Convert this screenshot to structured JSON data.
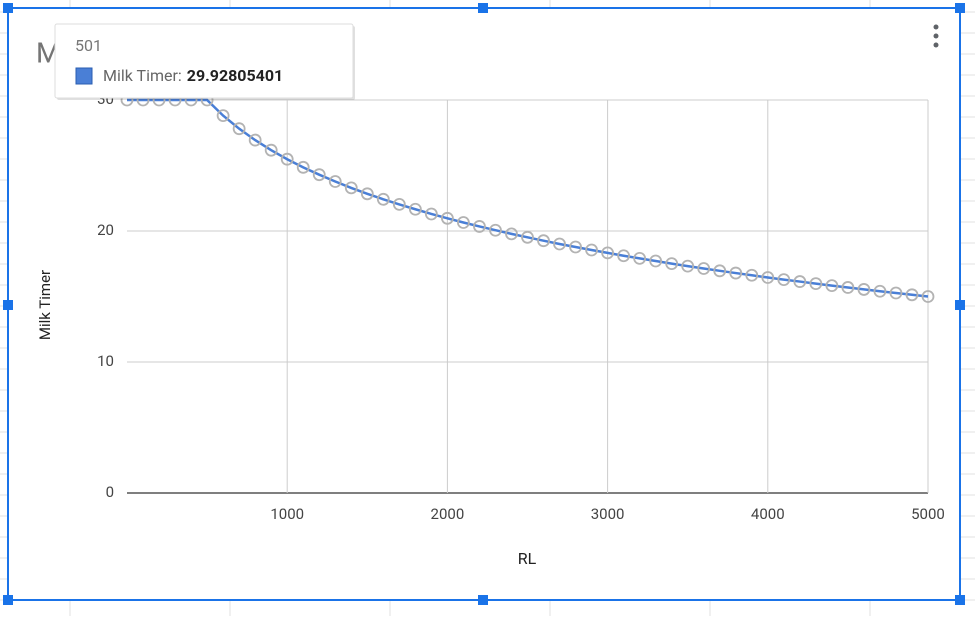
{
  "chart_data": {
    "type": "line",
    "title": "M",
    "x_label": "RL",
    "y_label": "Milk Timer",
    "x": [
      0,
      100,
      200,
      300,
      400,
      500,
      600,
      700,
      800,
      900,
      1000,
      1100,
      1200,
      1300,
      1400,
      1500,
      1600,
      1700,
      1800,
      1900,
      2000,
      2100,
      2200,
      2300,
      2400,
      2500,
      2600,
      2700,
      2800,
      2900,
      3000,
      3100,
      3200,
      3300,
      3400,
      3500,
      3600,
      3700,
      3800,
      3900,
      4000,
      4100,
      4200,
      4300,
      4400,
      4500,
      4600,
      4700,
      4800,
      4900,
      5000
    ],
    "series": [
      {
        "name": "Milk Timer",
        "color": "#4a7fd6",
        "marker_color": "#b3b3b3",
        "values": [
          30,
          30,
          30,
          30,
          30,
          30,
          28.81,
          27.81,
          26.94,
          26.17,
          25.48,
          24.86,
          24.3,
          23.78,
          23.29,
          22.84,
          22.42,
          22.03,
          21.66,
          21.3,
          20.97,
          20.65,
          20.35,
          20.06,
          19.78,
          19.52,
          19.26,
          19.01,
          18.78,
          18.55,
          18.33,
          18.11,
          17.91,
          17.71,
          17.51,
          17.32,
          17.14,
          16.96,
          16.79,
          16.62,
          16.45,
          16.29,
          16.14,
          15.98,
          15.83,
          15.69,
          15.54,
          15.4,
          15.27,
          15.13,
          15.0
        ]
      }
    ],
    "xlim": [
      0,
      5000
    ],
    "xticks": [
      1000,
      2000,
      3000,
      4000,
      5000
    ],
    "ylim": [
      0,
      30
    ],
    "yticks": [
      0,
      10,
      20,
      30
    ],
    "grid": true,
    "tooltip": {
      "title": 501,
      "label": "Milk Timer:",
      "value": 29.92805401
    }
  }
}
